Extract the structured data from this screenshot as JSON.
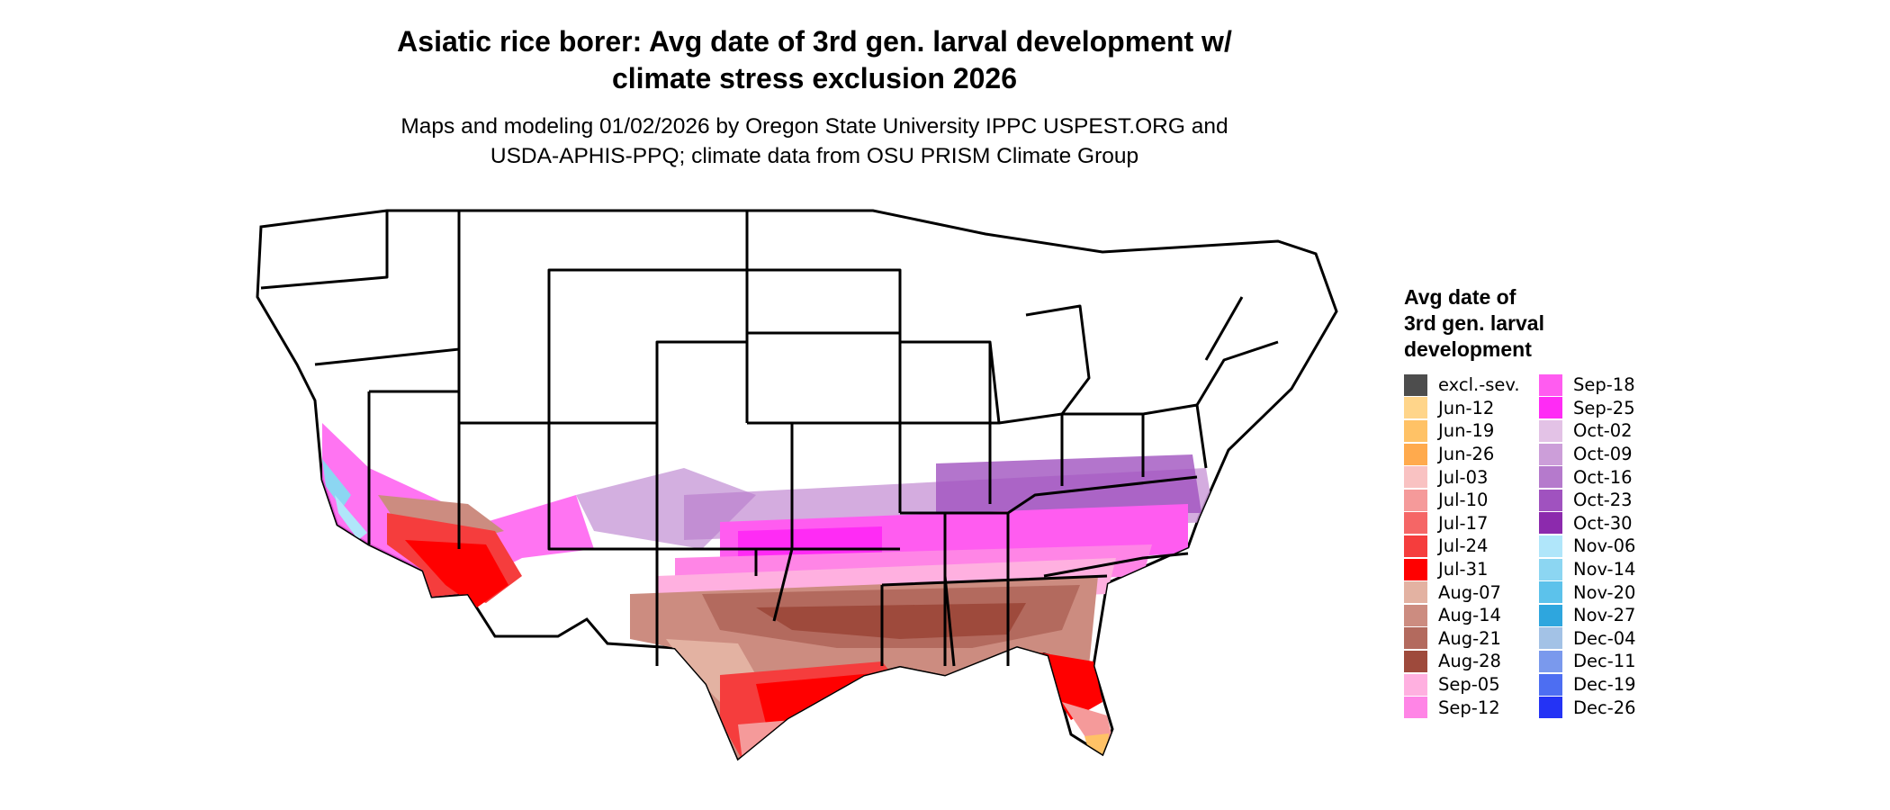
{
  "title": "Asiatic rice borer: Avg date of 3rd gen. larval development w/\nclimate stress exclusion 2026",
  "subtitle": "Maps and modeling 01/02/2026 by Oregon State University IPPC USPEST.ORG and\nUSDA-APHIS-PPQ; climate data from OSU PRISM Climate Group",
  "legend": {
    "title": "Avg date of\n3rd gen. larval\ndevelopment",
    "items": [
      {
        "label": "excl.-sev.",
        "color": "#4d4d4d"
      },
      {
        "label": "Jun-12",
        "color": "#ffd58a"
      },
      {
        "label": "Jun-19",
        "color": "#ffc266"
      },
      {
        "label": "Jun-26",
        "color": "#ffaa4d"
      },
      {
        "label": "Jul-03",
        "color": "#f9c2c2"
      },
      {
        "label": "Jul-10",
        "color": "#f59a9a"
      },
      {
        "label": "Jul-17",
        "color": "#f56666"
      },
      {
        "label": "Jul-24",
        "color": "#f53d3d"
      },
      {
        "label": "Jul-31",
        "color": "#ff0000"
      },
      {
        "label": "Aug-07",
        "color": "#e3b2a2"
      },
      {
        "label": "Aug-14",
        "color": "#cc8c80"
      },
      {
        "label": "Aug-21",
        "color": "#b36a5e"
      },
      {
        "label": "Aug-28",
        "color": "#9e4a3c"
      },
      {
        "label": "Sep-05",
        "color": "#ffb0e0"
      },
      {
        "label": "Sep-12",
        "color": "#ff85e6"
      },
      {
        "label": "Sep-18",
        "color": "#ff5cf0"
      },
      {
        "label": "Sep-25",
        "color": "#ff2bf5"
      },
      {
        "label": "Oct-02",
        "color": "#e3c2e6"
      },
      {
        "label": "Oct-09",
        "color": "#cc9ed9"
      },
      {
        "label": "Oct-16",
        "color": "#b57acc"
      },
      {
        "label": "Oct-23",
        "color": "#a052bf"
      },
      {
        "label": "Oct-30",
        "color": "#8c2aad"
      },
      {
        "label": "Nov-06",
        "color": "#b0e6fa"
      },
      {
        "label": "Nov-14",
        "color": "#8cd6f2"
      },
      {
        "label": "Nov-20",
        "color": "#5cc2eb"
      },
      {
        "label": "Nov-27",
        "color": "#2ea6de"
      },
      {
        "label": "Dec-04",
        "color": "#a3c2e6"
      },
      {
        "label": "Dec-11",
        "color": "#7a99ed"
      },
      {
        "label": "Dec-19",
        "color": "#4d6ef2"
      },
      {
        "label": "Dec-26",
        "color": "#2433f5"
      }
    ]
  }
}
